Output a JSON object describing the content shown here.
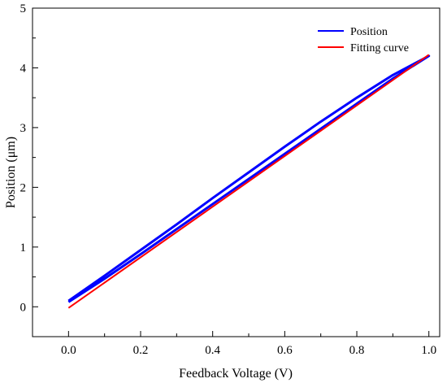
{
  "chart_data": {
    "type": "line",
    "title": "",
    "xlabel": "Feedback Voltage (V)",
    "ylabel": "Position (μm)",
    "xlim": [
      -0.1,
      1.03
    ],
    "ylim": [
      -0.5,
      5
    ],
    "x_ticks": [
      "0.0",
      "0.2",
      "0.4",
      "0.6",
      "0.8",
      "1.0"
    ],
    "y_ticks": [
      "0",
      "1",
      "2",
      "3",
      "4",
      "5"
    ],
    "grid": false,
    "legend_position": "top-right",
    "series": [
      {
        "name": "Position",
        "color": "#0000ff",
        "x": [
          0.0,
          0.1,
          0.2,
          0.3,
          0.4,
          0.5,
          0.6,
          0.7,
          0.8,
          0.9,
          1.0,
          0.9,
          0.8,
          0.7,
          0.6,
          0.5,
          0.4,
          0.3,
          0.2,
          0.1,
          0.0
        ],
        "y": [
          0.08,
          0.47,
          0.88,
          1.3,
          1.72,
          2.14,
          2.56,
          2.98,
          3.4,
          3.82,
          4.2,
          3.88,
          3.5,
          3.1,
          2.68,
          2.25,
          1.82,
          1.38,
          0.95,
          0.52,
          0.1
        ]
      },
      {
        "name": "Fitting curve",
        "color": "#ff0000",
        "x": [
          0.0,
          1.0
        ],
        "y": [
          -0.02,
          4.22
        ]
      }
    ]
  }
}
